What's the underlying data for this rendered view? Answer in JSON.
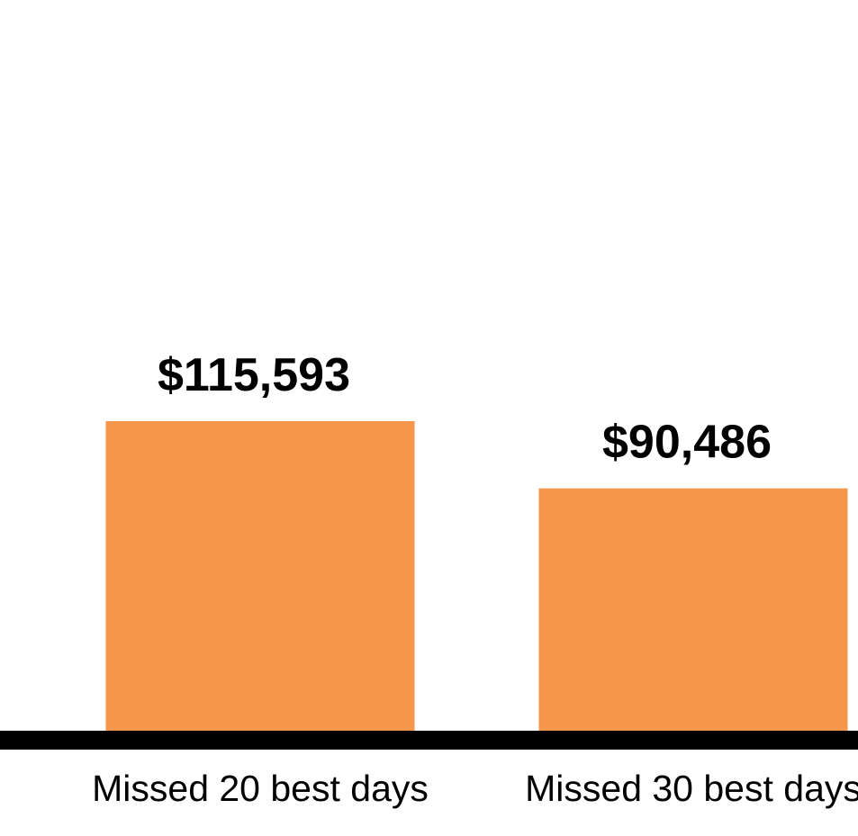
{
  "chart_data": {
    "type": "bar",
    "categories": [
      "Missed 20 best days",
      "Missed 30 best days"
    ],
    "values": [
      115593,
      90486
    ],
    "value_labels": [
      "$115,593",
      "$90,486"
    ],
    "color": "#f5964a"
  }
}
